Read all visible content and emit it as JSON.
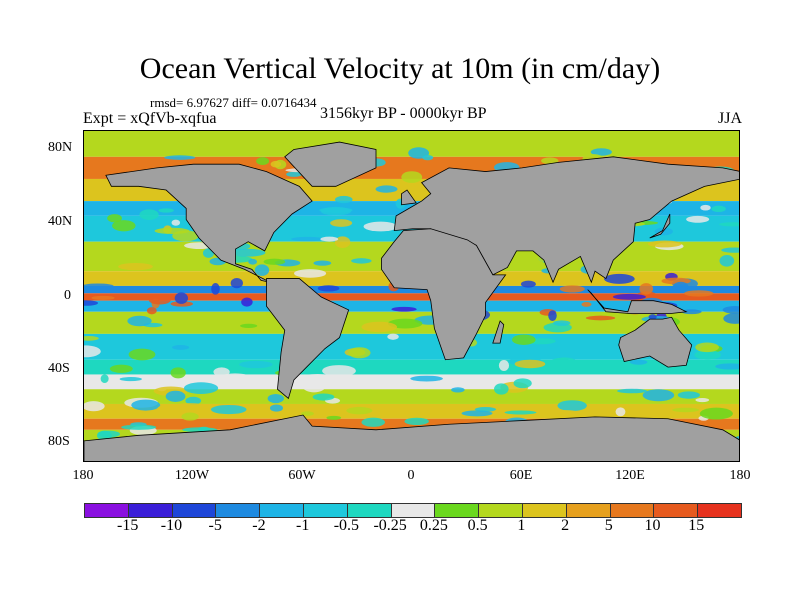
{
  "title": "Ocean Vertical Velocity at 10m (in cm/day)",
  "stats": "rmsd= 6.97627 diff= 0.0716434",
  "experiment": "Expt = xQfVb-xqfua",
  "period": "3156kyr BP - 0000kyr BP",
  "season": "JJA",
  "lat_labels": [
    "80N",
    "40N",
    "0",
    "40S",
    "80S"
  ],
  "lon_labels": [
    "180",
    "120W",
    "60W",
    "0",
    "60E",
    "120E",
    "180"
  ],
  "colorbar": {
    "colors": [
      "#8a10e0",
      "#3a1ed8",
      "#1e46d8",
      "#1e8ae0",
      "#1eb4e6",
      "#1ec8dc",
      "#1ed8c0",
      "#e8e8e8",
      "#6ad81e",
      "#b4d81e",
      "#dcc41e",
      "#e6a01e",
      "#e6781e",
      "#e65a1e",
      "#e6321e"
    ],
    "labels": [
      "-15",
      "-10",
      "-5",
      "-2",
      "-1",
      "-0.5",
      "-0.25",
      "0.25",
      "0.5",
      "1",
      "2",
      "5",
      "10",
      "15"
    ]
  },
  "land_color": "#a0a0a0"
}
